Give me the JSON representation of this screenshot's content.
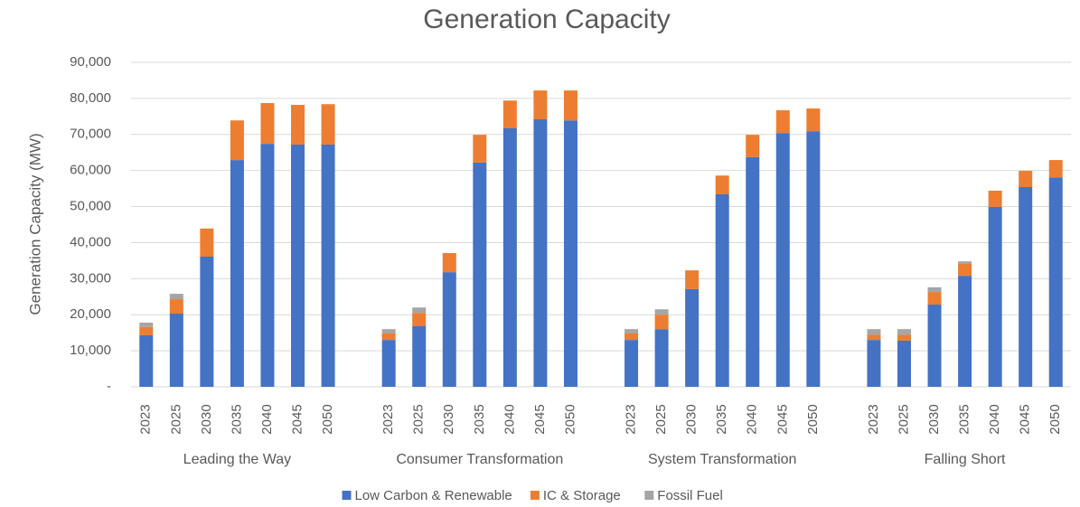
{
  "chart_data": {
    "type": "stacked-bar",
    "title": "Generation Capacity",
    "y_label": "Generation Capacity (MW)",
    "groups": [
      "Leading the Way",
      "Consumer Transformation",
      "System Transformation",
      "Falling Short"
    ],
    "categories": [
      "2023",
      "2025",
      "2030",
      "2035",
      "2040",
      "2045",
      "2050",
      "2023",
      "2025",
      "2030",
      "2035",
      "2040",
      "2045",
      "2050",
      "2023",
      "2025",
      "2030",
      "2035",
      "2040",
      "2045",
      "2050",
      "2023",
      "2025",
      "2030",
      "2035",
      "2040",
      "2045",
      "2050"
    ],
    "series": [
      {
        "name": "Low Carbon & Renewable",
        "color": "#4472c4",
        "values": [
          14300,
          20300,
          36100,
          62900,
          67400,
          67200,
          67200,
          13000,
          16800,
          31800,
          62200,
          71700,
          74200,
          73900,
          13000,
          16000,
          27100,
          53400,
          63700,
          70400,
          70900,
          13000,
          12800,
          22800,
          30800,
          49900,
          55400,
          58100
        ]
      },
      {
        "name": "IC & Storage",
        "color": "#ed7d31",
        "values": [
          2300,
          4000,
          7800,
          11000,
          11300,
          11000,
          11200,
          1800,
          3700,
          5300,
          7700,
          7700,
          8000,
          8300,
          1800,
          4000,
          5200,
          5200,
          6200,
          6300,
          6300,
          1500,
          1700,
          3500,
          3300,
          4500,
          4500,
          4800
        ]
      },
      {
        "name": "Fossil Fuel",
        "color": "#a5a5a5",
        "values": [
          1200,
          1500,
          0,
          0,
          0,
          0,
          0,
          1200,
          1500,
          0,
          0,
          0,
          0,
          0,
          1200,
          1500,
          0,
          0,
          0,
          0,
          0,
          1500,
          1500,
          1300,
          700,
          0,
          0,
          0
        ]
      }
    ],
    "ylim": [
      0,
      90000
    ],
    "yticks": [
      {
        "value": 0,
        "label": "-"
      },
      {
        "value": 10000,
        "label": "10,000"
      },
      {
        "value": 20000,
        "label": "20,000"
      },
      {
        "value": 30000,
        "label": "30,000"
      },
      {
        "value": 40000,
        "label": "40,000"
      },
      {
        "value": 50000,
        "label": "50,000"
      },
      {
        "value": 60000,
        "label": "60,000"
      },
      {
        "value": 70000,
        "label": "70,000"
      },
      {
        "value": 80000,
        "label": "80,000"
      },
      {
        "value": 90000,
        "label": "90,000"
      }
    ],
    "grid": true,
    "legend": "bottom"
  }
}
